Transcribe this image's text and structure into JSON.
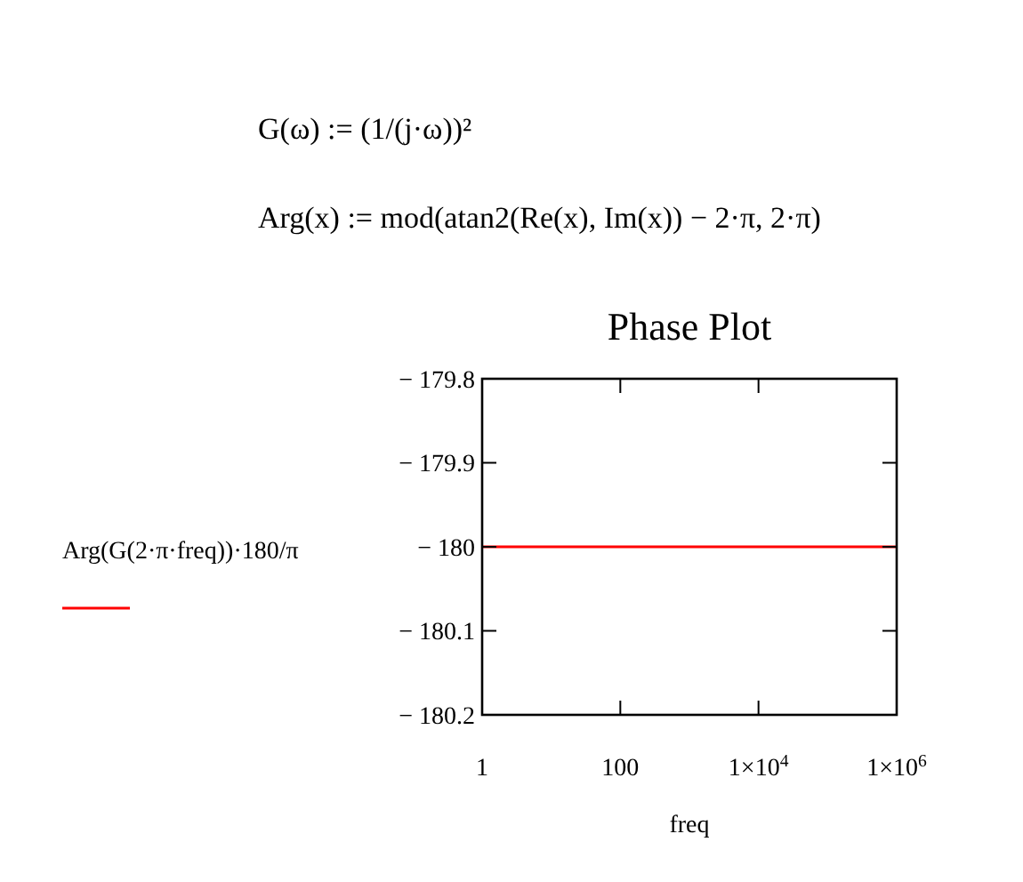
{
  "chart_data": {
    "type": "line",
    "title": "Phase Plot",
    "xlabel": "freq",
    "ylabel": "Arg(G(2·π·freq))·180/π",
    "annotations": [
      "G(ω) := (1/(j·ω))²",
      "Arg(x) := mod(atan2(Re(x), Im(x)) − 2·π, 2·π)"
    ],
    "x": [
      1,
      1000000
    ],
    "series": [
      {
        "color": "#ff0000",
        "values": [
          -180,
          -180
        ]
      }
    ],
    "log": "x",
    "grid": false,
    "xlim": [
      1,
      1000000
    ],
    "xticks": [
      1,
      100,
      {
        "value": 10000,
        "label": "1×10$^{4}$"
      },
      {
        "value": 1000000,
        "label": "1×10$^{6}$"
      }
    ],
    "ylim": [
      -180.2,
      -179.8
    ],
    "yticks": [
      {
        "value": -179.8,
        "label": "− 179.8"
      },
      {
        "value": -179.9,
        "label": "− 179.9"
      },
      {
        "value": -180,
        "label": "− 180"
      },
      {
        "value": -180.1,
        "label": "− 180.1"
      },
      {
        "value": -180.2,
        "label": "− 180.2"
      }
    ]
  }
}
